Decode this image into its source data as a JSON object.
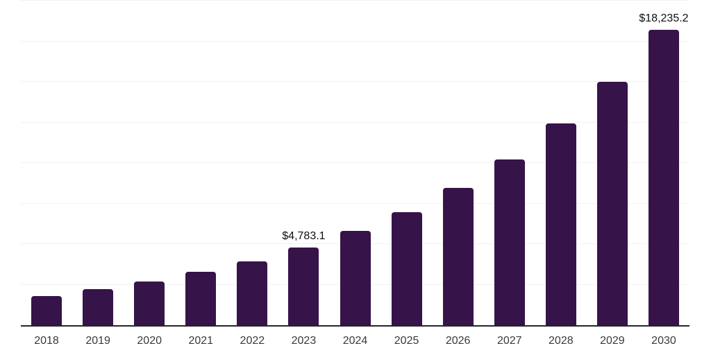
{
  "chart_data": {
    "type": "bar",
    "title": "",
    "xlabel": "",
    "ylabel": "",
    "categories": [
      "2018",
      "2019",
      "2020",
      "2021",
      "2022",
      "2023",
      "2024",
      "2025",
      "2026",
      "2027",
      "2028",
      "2029",
      "2030"
    ],
    "values": [
      1790,
      2220,
      2690,
      3280,
      3930,
      4783.1,
      5800,
      6950,
      8450,
      10240,
      12460,
      15020,
      18235.2
    ],
    "data_labels": {
      "2023": "$4,783.1",
      "2030": "$18,235.2"
    },
    "ylim": [
      0,
      20050
    ],
    "grid_interval": 2500,
    "grid_on": true,
    "legend_position": "none",
    "colors": {
      "bar": "#361349",
      "gridline": "#f2f2f5",
      "axis": "#262626",
      "data_label": "#0e0e0e",
      "tick_label": "#3a3a3a",
      "background": "#ffffff"
    }
  }
}
